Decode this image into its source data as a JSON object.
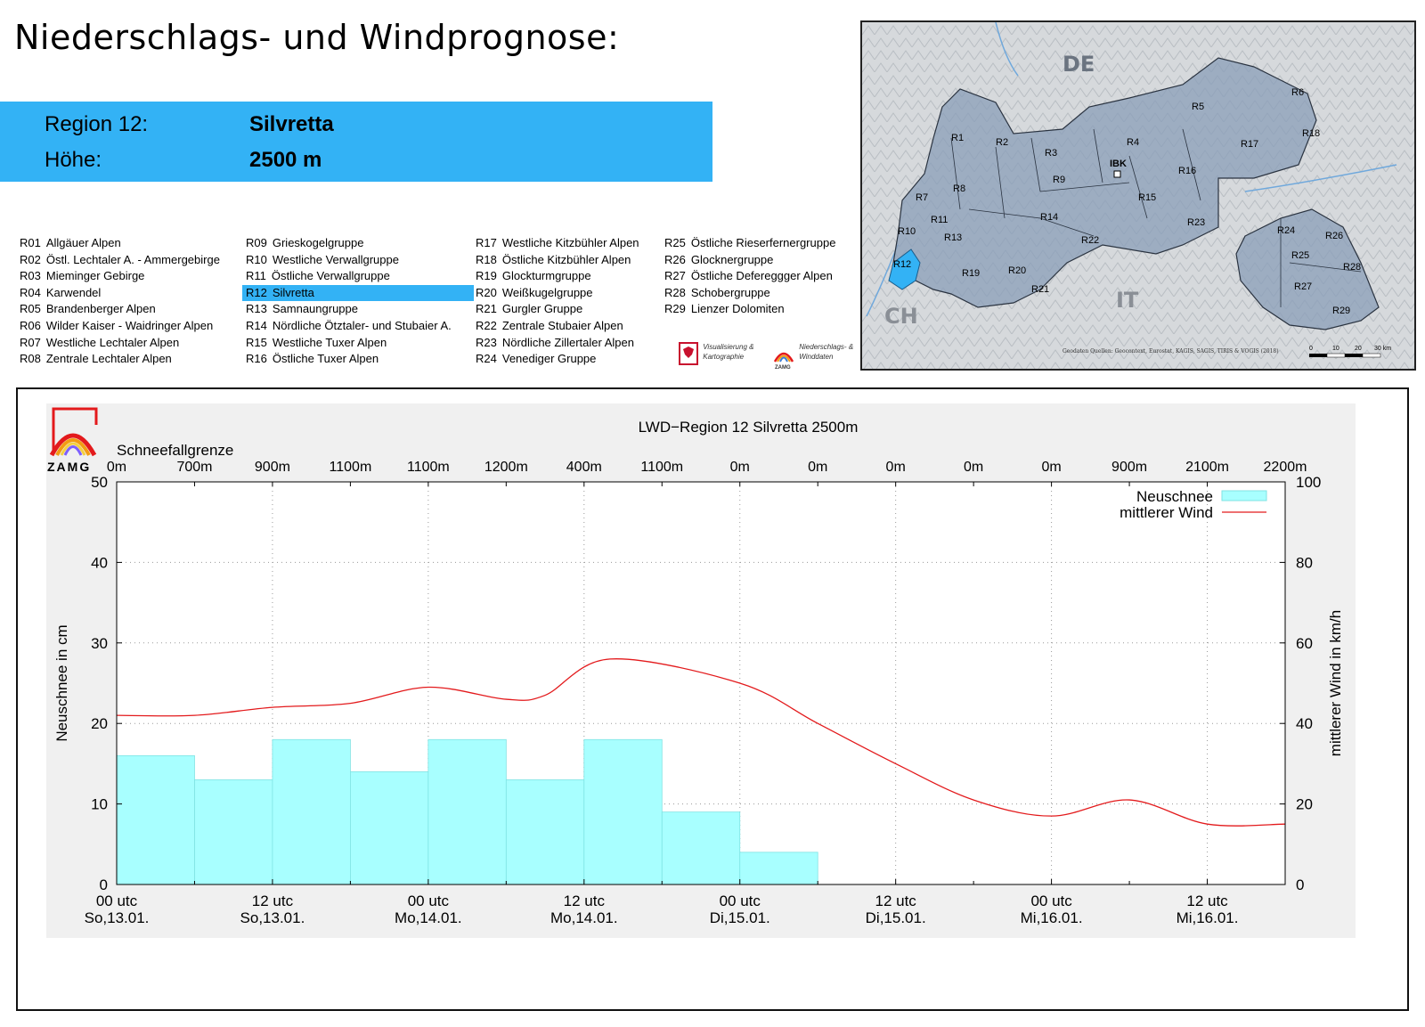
{
  "page_title": "Niederschlags- und Windprognose:",
  "banner": {
    "region_label": "Region 12:",
    "region_value": "Silvretta",
    "height_label": "Höhe:",
    "height_value": "2500 m"
  },
  "regions": [
    {
      "code": "R01",
      "name": "Allgäuer Alpen"
    },
    {
      "code": "R02",
      "name": "Östl. Lechtaler A. - Ammergebirge"
    },
    {
      "code": "R03",
      "name": "Mieminger Gebirge"
    },
    {
      "code": "R04",
      "name": "Karwendel"
    },
    {
      "code": "R05",
      "name": "Brandenberger Alpen"
    },
    {
      "code": "R06",
      "name": "Wilder Kaiser - Waidringer Alpen"
    },
    {
      "code": "R07",
      "name": "Westliche Lechtaler Alpen"
    },
    {
      "code": "R08",
      "name": "Zentrale Lechtaler Alpen"
    },
    {
      "code": "R09",
      "name": "Grieskogelgruppe"
    },
    {
      "code": "R10",
      "name": "Westliche Verwallgruppe"
    },
    {
      "code": "R11",
      "name": "Östliche Verwallgruppe"
    },
    {
      "code": "R12",
      "name": "Silvretta",
      "active": true
    },
    {
      "code": "R13",
      "name": "Samnaungruppe"
    },
    {
      "code": "R14",
      "name": "Nördliche Ötztaler- und Stubaier A."
    },
    {
      "code": "R15",
      "name": "Westliche Tuxer Alpen"
    },
    {
      "code": "R16",
      "name": "Östliche Tuxer Alpen"
    },
    {
      "code": "R17",
      "name": "Westliche Kitzbühler Alpen"
    },
    {
      "code": "R18",
      "name": "Östliche Kitzbühler Alpen"
    },
    {
      "code": "R19",
      "name": "Glockturmgruppe"
    },
    {
      "code": "R20",
      "name": "Weißkugelgruppe"
    },
    {
      "code": "R21",
      "name": "Gurgler Gruppe"
    },
    {
      "code": "R22",
      "name": "Zentrale Stubaier Alpen"
    },
    {
      "code": "R23",
      "name": "Nördliche Zillertaler Alpen"
    },
    {
      "code": "R24",
      "name": "Venediger Gruppe"
    },
    {
      "code": "R25",
      "name": "Östliche Rieserfernergruppe"
    },
    {
      "code": "R26",
      "name": "Glocknergruppe"
    },
    {
      "code": "R27",
      "name": "Östliche Defereggger Alpen"
    },
    {
      "code": "R28",
      "name": "Schobergruppe"
    },
    {
      "code": "R29",
      "name": "Lienzer Dolomiten"
    }
  ],
  "logos": {
    "tirol_text1": "Visualisierung &",
    "tirol_text2": "Kartographie",
    "zamg_text1": "Niederschlags- &",
    "zamg_text2": "Winddaten",
    "zamg_small": "ZAMG"
  },
  "map": {
    "labels": {
      "de": "DE",
      "ch": "CH",
      "it": "IT",
      "ibk": "IBK"
    },
    "source": "Geodaten Quellen: Geocontext, Eurostat, KAGIS, SAGIS, TIRIS & VOGIS (2018)",
    "scale_labels": [
      "0",
      "10",
      "20",
      "30 km"
    ]
  },
  "chart_data": {
    "type": "bar",
    "title": "LWD−Region 12 Silvretta 2500m",
    "logo_text": "ZAMG",
    "ylabel_left": "Neuschnee in cm",
    "ylabel_right": "mittlerer Wind in km/h",
    "ylim_left": [
      0,
      50
    ],
    "ylim_right": [
      0,
      100
    ],
    "yticks_left": [
      "0",
      "10",
      "20",
      "30",
      "40",
      "50"
    ],
    "yticks_right": [
      "0",
      "20",
      "40",
      "60",
      "80",
      "100"
    ],
    "x_ticks": [
      {
        "hour": 0,
        "line1": "00 utc",
        "line2": "So,13.01."
      },
      {
        "hour": 12,
        "line1": "12 utc",
        "line2": "So,13.01."
      },
      {
        "hour": 24,
        "line1": "00 utc",
        "line2": "Mo,14.01."
      },
      {
        "hour": 36,
        "line1": "12 utc",
        "line2": "Mo,14.01."
      },
      {
        "hour": 48,
        "line1": "00 utc",
        "line2": "Di,15.01."
      },
      {
        "hour": 60,
        "line1": "12 utc",
        "line2": "Di,15.01."
      },
      {
        "hour": 72,
        "line1": "00 utc",
        "line2": "Mi,16.01."
      },
      {
        "hour": 84,
        "line1": "12 utc",
        "line2": "Mi,16.01."
      }
    ],
    "snowline_title": "Schneefallgrenze",
    "snowline": [
      "0m",
      "700m",
      "900m",
      "1100m",
      "1100m",
      "1200m",
      "400m",
      "1100m",
      "0m",
      "0m",
      "0m",
      "0m",
      "0m",
      "900m",
      "2100m",
      "2200m"
    ],
    "legend": [
      "Neuschnee",
      "mittlerer Wind"
    ],
    "neuschnee": [
      16,
      13,
      18,
      14,
      18,
      13,
      18,
      9,
      4,
      0,
      0,
      0,
      0,
      0,
      0
    ],
    "wind": [
      [
        0,
        42
      ],
      [
        6,
        42
      ],
      [
        12,
        44
      ],
      [
        18,
        45
      ],
      [
        24,
        49
      ],
      [
        30,
        46
      ],
      [
        33,
        47
      ],
      [
        38,
        56
      ],
      [
        48,
        50
      ],
      [
        54,
        40
      ],
      [
        60,
        30
      ],
      [
        66,
        21
      ],
      [
        72,
        17
      ],
      [
        78,
        21
      ],
      [
        84,
        15
      ],
      [
        90,
        15
      ]
    ],
    "colors": {
      "bar": "#a8ffff",
      "bar_edge": "#7fe3e3",
      "wind": "#e31a1c",
      "plot_bg": "#ffffff",
      "outer_bg": "#f0f0f0"
    }
  }
}
